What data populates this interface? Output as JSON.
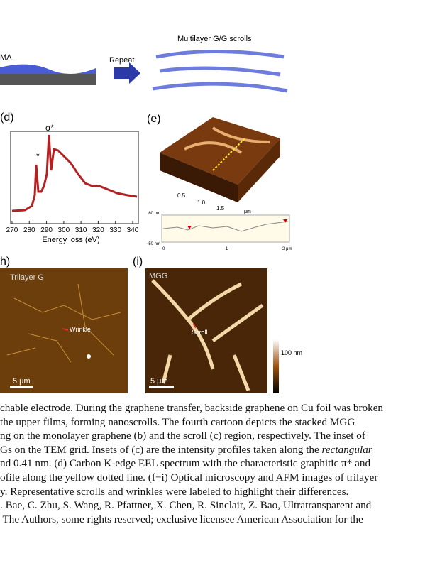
{
  "figure": {
    "top": {
      "label_left": "MA",
      "arrow_label": "Repeat",
      "title": "Multilayer G/G scrolls"
    },
    "panel_d": {
      "label": "(d)",
      "peak_sigma": "σ*",
      "peak_pi": "*",
      "xticks": [
        "270",
        "280",
        "290",
        "300",
        "310",
        "320",
        "330",
        "340"
      ],
      "xlabel": "Energy loss (eV)"
    },
    "panel_e": {
      "label": "(e)",
      "surface_ticks": [
        "0.5",
        "1.0",
        "1.5"
      ],
      "surface_unit": "μm",
      "profile_ytop": "60 nm",
      "profile_ybottom": "−50 nm",
      "profile_xticks": [
        "0",
        "1",
        "2 μm"
      ]
    },
    "panel_h": {
      "label": "h)",
      "title": "Trilayer G",
      "annotation": "Wrinkle",
      "scale_bar": "5 μm"
    },
    "panel_i": {
      "label": "(i)",
      "title": "MGG",
      "annotation": "Scroll",
      "scale_bar": "5 μm",
      "colorbar_label": "100 nm"
    }
  },
  "caption": {
    "lines": [
      "chable electrode. During the graphene transfer, backside graphene on Cu foil was broken",
      "the upper films, forming nanoscrolls. The fourth cartoon depicts the stacked MGG",
      "ng on the monolayer graphene (b) and the scroll (c) region, respectively. The inset of",
      [
        "Gs on the TEM grid. Insets of (c) are the intensity profiles taken along the ",
        "rectangular"
      ],
      "nd 0.41 nm. (d) Carbon K-edge EEL spectrum with the characteristic graphitic π* and",
      "ofile along the yellow dotted line. (f−i) Optical microscopy and AFM images of trilayer",
      "y. Representative scrolls and wrinkles were labeled to highlight their differences.",
      ". Bae, C. Zhu, S. Wang, R. Pfattner, X. Chen, R. Sinclair, Z. Bao, Ultratransparent and",
      " The Authors, some rights reserved; exclusive licensee American Association for the"
    ]
  }
}
